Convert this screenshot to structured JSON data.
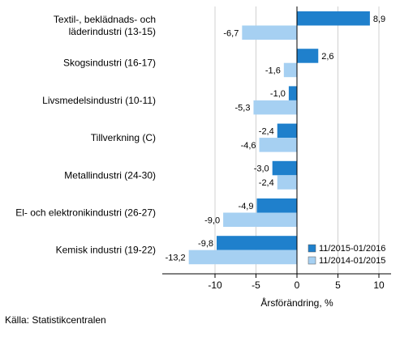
{
  "chart_data": {
    "type": "bar",
    "orientation": "horizontal",
    "categories": [
      "Textil-, beklädnads- och läderindustri (13-15)",
      "Skogsindustri (16-17)",
      "Livsmedelsindustri (10-11)",
      "Tillverkning (C)",
      "Metallindustri (24-30)",
      "El- och elektronikindustri (26-27)",
      "Kemisk industri (19-22)"
    ],
    "category_lines": [
      [
        "Textil-, beklädnads- och",
        "läderindustri (13-15)"
      ],
      [
        "Skogsindustri (16-17)"
      ],
      [
        "Livsmedelsindustri (10-11)"
      ],
      [
        "Tillverkning (C)"
      ],
      [
        "Metallindustri (24-30)"
      ],
      [
        "El- och elektronikindustri (26-27)"
      ],
      [
        "Kemisk industri (19-22)"
      ]
    ],
    "series": [
      {
        "name": "11/2015-01/2016",
        "color": "#1f80cc",
        "values": [
          8.9,
          2.6,
          -1.0,
          -2.4,
          -3.0,
          -4.9,
          -9.8
        ],
        "labels": [
          "8,9",
          "2,6",
          "-1,0",
          "-2,4",
          "-3,0",
          "-4,9",
          "-9,8"
        ]
      },
      {
        "name": "11/2014-01/2015",
        "color": "#a6d0f2",
        "values": [
          -6.7,
          -1.6,
          -5.3,
          -4.6,
          -2.4,
          -9.0,
          -13.2
        ],
        "labels": [
          "-6,7",
          "-1,6",
          "-5,3",
          "-4,6",
          "-2,4",
          "-9,0",
          "-13,2"
        ]
      }
    ],
    "xlabel": "Årsförändring, %",
    "xlim": [
      -16,
      11
    ],
    "xticks": [
      -10,
      -5,
      0,
      5,
      10
    ],
    "xtick_labels": [
      "-10",
      "-5",
      "0",
      "5",
      "10"
    ],
    "grid": "vertical",
    "legend_position": "bottom-right"
  },
  "source": "Källa: Statistikcentralen"
}
